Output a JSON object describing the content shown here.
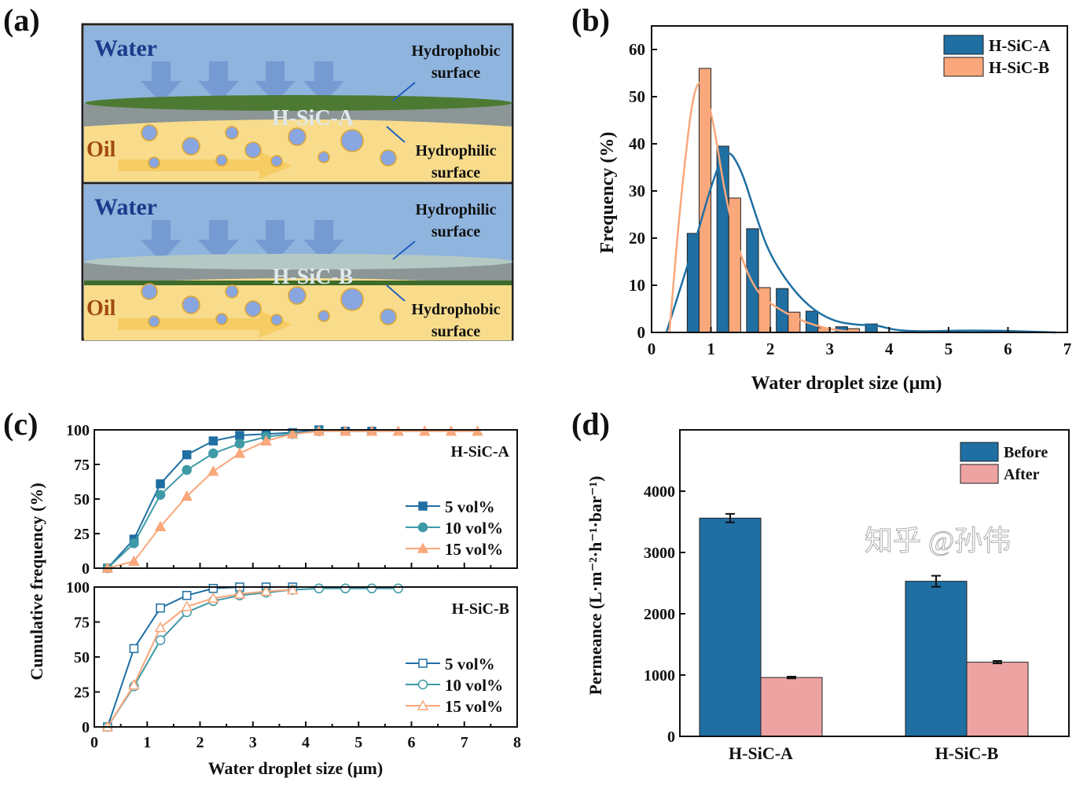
{
  "panels": {
    "a": {
      "label": "(a)",
      "top": {
        "water": "Water",
        "membrane": "H-SiC-A",
        "oil": "Oil",
        "upper_surface": "Hydrophobic surface",
        "lower_surface": "Hydrophilic surface"
      },
      "bottom": {
        "water": "Water",
        "membrane": "H-SiC-B",
        "oil": "Oil",
        "upper_surface": "Hydrophilic surface",
        "lower_surface": "Hydrophobic surface"
      },
      "colors": {
        "water": "#8fb4de",
        "oil": "#f8dc8c",
        "droplet": "#8aa6e0"
      }
    },
    "b": {
      "label": "(b)"
    },
    "c": {
      "label": "(c)"
    },
    "d": {
      "label": "(d)"
    }
  },
  "watermark": "知乎 @孙伟",
  "chart_data": [
    {
      "panel": "b",
      "type": "bar",
      "xlabel": "Water droplet size (μm)",
      "ylabel": "Frequency (%)",
      "xlim": [
        0,
        7
      ],
      "ylim": [
        0,
        65
      ],
      "xticks": [
        "0",
        "1",
        "2",
        "3",
        "4",
        "5",
        "6",
        "7"
      ],
      "yticks": [
        "0",
        "10",
        "20",
        "30",
        "40",
        "50",
        "60"
      ],
      "legend_position": "top-right",
      "series": [
        {
          "name": "H-SiC-A",
          "color": "#1f6fa3",
          "x": [
            0.7,
            1.2,
            1.7,
            2.2,
            2.7,
            3.2,
            3.7
          ],
          "values": [
            21,
            39.5,
            22,
            9.3,
            4.5,
            1.2,
            1.8
          ],
          "fit_curve": [
            [
              0.25,
              0
            ],
            [
              0.5,
              10
            ],
            [
              0.75,
              20
            ],
            [
              1.0,
              31
            ],
            [
              1.25,
              39.5
            ],
            [
              1.5,
              35
            ],
            [
              1.75,
              25
            ],
            [
              2.0,
              16
            ],
            [
              2.5,
              7
            ],
            [
              3.0,
              2.5
            ],
            [
              3.5,
              1.5
            ],
            [
              3.75,
              1.7
            ],
            [
              4.2,
              0.1
            ],
            [
              5.5,
              0.5
            ],
            [
              6.8,
              0
            ]
          ]
        },
        {
          "name": "H-SiC-B",
          "color": "#f9a77b",
          "x": [
            0.9,
            1.4,
            1.9,
            2.4,
            2.9,
            3.4
          ],
          "values": [
            56,
            28.5,
            9.5,
            4.3,
            1.0,
            0.8
          ],
          "fit_curve": [
            [
              0.3,
              0
            ],
            [
              0.5,
              30
            ],
            [
              0.75,
              56
            ],
            [
              1.0,
              48
            ],
            [
              1.25,
              28
            ],
            [
              1.5,
              16
            ],
            [
              1.75,
              9
            ],
            [
              2.0,
              6
            ],
            [
              2.5,
              2.5
            ],
            [
              3.0,
              0.6
            ],
            [
              3.5,
              0
            ]
          ]
        }
      ]
    },
    {
      "panel": "c",
      "type": "line",
      "xlabel": "Water  droplet size (μm)",
      "ylabel": "Cumulative frequency (%)",
      "xlim": [
        0,
        8
      ],
      "xticks": [
        "0",
        "1",
        "2",
        "3",
        "4",
        "5",
        "6",
        "7",
        "8"
      ],
      "subplots": [
        {
          "title": "H-SiC-A",
          "ylim": [
            0,
            100
          ],
          "yticks": [
            "0",
            "25",
            "50",
            "75",
            "100"
          ],
          "marker_fill": "filled",
          "series": [
            {
              "name": "5 vol%",
              "color": "#1f6fa3",
              "marker": "square",
              "x": [
                0.25,
                0.75,
                1.25,
                1.75,
                2.25,
                2.75,
                3.25,
                3.75,
                4.25,
                4.75,
                5.25
              ],
              "y": [
                0,
                21,
                61,
                82,
                92,
                96,
                97,
                98,
                100,
                99,
                99
              ]
            },
            {
              "name": "10 vol%",
              "color": "#3e9aa6",
              "marker": "circle",
              "x": [
                0.25,
                0.75,
                1.25,
                1.75,
                2.25,
                2.75,
                3.25,
                3.75,
                4.25
              ],
              "y": [
                0,
                18,
                53,
                71,
                83,
                90,
                95,
                97,
                99
              ]
            },
            {
              "name": "15 vol%",
              "color": "#f9a77b",
              "marker": "triangle",
              "x": [
                0.25,
                0.75,
                1.25,
                1.75,
                2.25,
                2.75,
                3.25,
                3.75,
                4.25,
                4.75,
                5.25,
                5.75,
                6.25,
                6.75,
                7.25
              ],
              "y": [
                0,
                5,
                30,
                52,
                70,
                83,
                92,
                97,
                99,
                99,
                99,
                99,
                99,
                99,
                99
              ]
            }
          ]
        },
        {
          "title": "H-SiC-B",
          "ylim": [
            0,
            100
          ],
          "yticks": [
            "0",
            "25",
            "50",
            "75",
            "100"
          ],
          "marker_fill": "open",
          "series": [
            {
              "name": "5 vol%",
              "color": "#1f6fa3",
              "marker": "square",
              "x": [
                0.25,
                0.75,
                1.25,
                1.75,
                2.25,
                2.75,
                3.25,
                3.75
              ],
              "y": [
                0,
                56,
                85,
                94,
                99,
                100,
                100,
                100
              ]
            },
            {
              "name": "10 vol%",
              "color": "#3e9aa6",
              "marker": "circle",
              "x": [
                0.25,
                0.75,
                1.25,
                1.75,
                2.25,
                2.75,
                3.25,
                3.75,
                4.25,
                4.75,
                5.25,
                5.75
              ],
              "y": [
                0,
                29,
                62,
                82,
                90,
                94,
                96,
                98,
                99,
                99,
                99,
                99
              ]
            },
            {
              "name": "15 vol%",
              "color": "#f9a77b",
              "marker": "triangle",
              "x": [
                0.25,
                0.75,
                1.25,
                1.75,
                2.25,
                2.75,
                3.25,
                3.75
              ],
              "y": [
                0,
                30,
                71,
                86,
                92,
                95,
                97,
                98
              ]
            }
          ]
        }
      ]
    },
    {
      "panel": "d",
      "type": "bar",
      "xlabel": "",
      "ylabel": "Permeance (L·m⁻²·h⁻¹·bar⁻¹)",
      "categories": [
        "H-SiC-A",
        "H-SiC-B"
      ],
      "ylim": [
        0,
        5000
      ],
      "yticks": [
        "0",
        "1000",
        "2000",
        "3000",
        "4000"
      ],
      "legend_position": "top-right",
      "series": [
        {
          "name": "Before",
          "color": "#1f6fa3",
          "values": [
            3560,
            2530
          ],
          "errors": [
            70,
            90
          ]
        },
        {
          "name": "After",
          "color": "#eea3a3",
          "values": [
            960,
            1210
          ],
          "errors": [
            15,
            20
          ]
        }
      ]
    }
  ]
}
